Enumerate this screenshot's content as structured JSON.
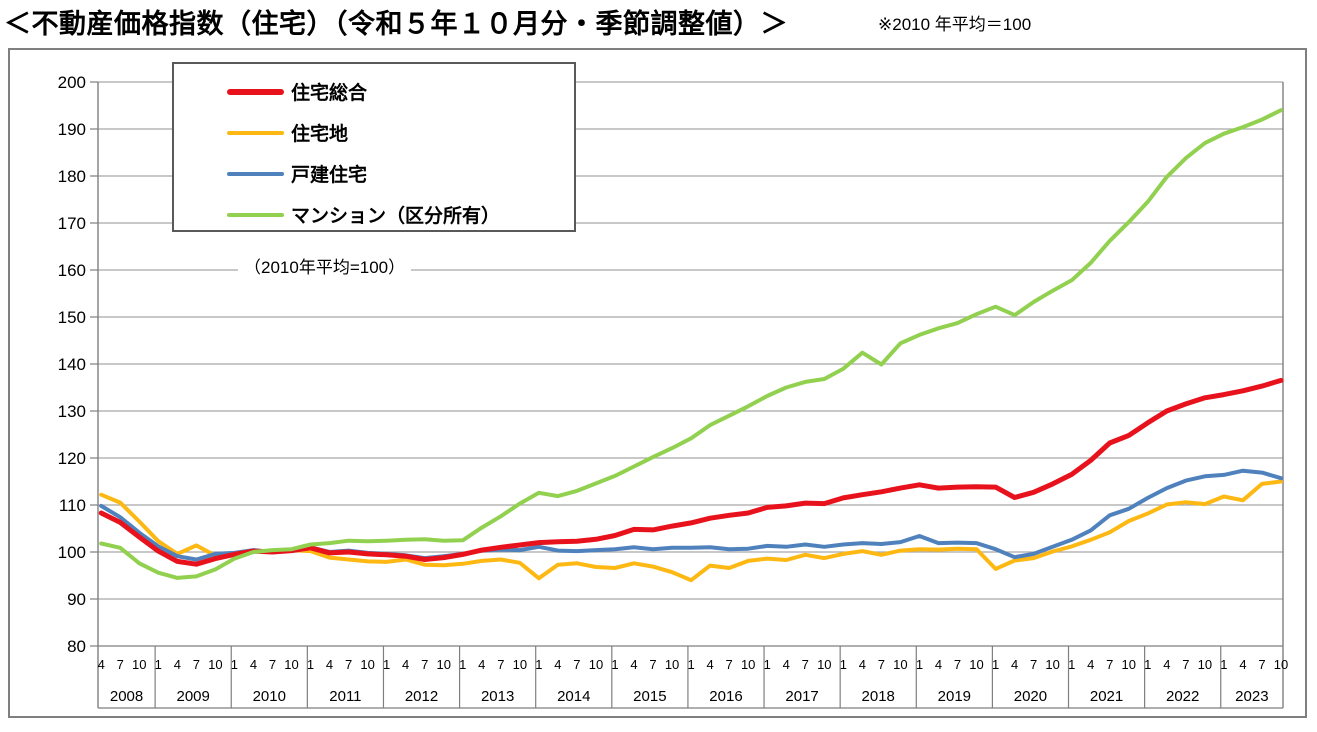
{
  "header": {
    "title": "＜不動産価格指数（住宅）（令和５年１０月分・季節調整値）＞",
    "note": "※2010 年平均＝100"
  },
  "annotation": "（2010年平均=100）",
  "chart_data": {
    "type": "line",
    "title": "＜不動産価格指数（住宅）（令和５年１０月分・季節調整値）＞",
    "subtitle_note": "※2010 年平均＝100",
    "inner_annotation": "（2010年平均=100）",
    "xlabel": "",
    "ylabel": "",
    "ylim": [
      80,
      200
    ],
    "ytick_interval": 10,
    "grid": true,
    "legend_position": "top-left-inside",
    "x_unit": "year/month (quarterly ticks 1,4,7,10; data 2008/4 - 2023/10)",
    "years": [
      "2008",
      "2009",
      "2010",
      "2011",
      "2012",
      "2013",
      "2014",
      "2015",
      "2016",
      "2017",
      "2018",
      "2019",
      "2020",
      "2021",
      "2022",
      "2023"
    ],
    "categories": [
      "2008/4",
      "2008/7",
      "2008/10",
      "2009/1",
      "2009/4",
      "2009/7",
      "2009/10",
      "2010/1",
      "2010/4",
      "2010/7",
      "2010/10",
      "2011/1",
      "2011/4",
      "2011/7",
      "2011/10",
      "2012/1",
      "2012/4",
      "2012/7",
      "2012/10",
      "2013/1",
      "2013/4",
      "2013/7",
      "2013/10",
      "2014/1",
      "2014/4",
      "2014/7",
      "2014/10",
      "2015/1",
      "2015/4",
      "2015/7",
      "2015/10",
      "2016/1",
      "2016/4",
      "2016/7",
      "2016/10",
      "2017/1",
      "2017/4",
      "2017/7",
      "2017/10",
      "2018/1",
      "2018/4",
      "2018/7",
      "2018/10",
      "2019/1",
      "2019/4",
      "2019/7",
      "2019/10",
      "2020/1",
      "2020/4",
      "2020/7",
      "2020/10",
      "2021/1",
      "2021/4",
      "2021/7",
      "2021/10",
      "2022/1",
      "2022/4",
      "2022/7",
      "2022/10",
      "2023/1",
      "2023/4",
      "2023/7",
      "2023/10"
    ],
    "series": [
      {
        "name": "住宅総合",
        "color": "#e8121d",
        "width": 5,
        "values": [
          108.3,
          106.3,
          103.2,
          100.2,
          98.0,
          97.4,
          98.6,
          99.5,
          100.2,
          100.0,
          100.3,
          100.9,
          99.8,
          100.0,
          99.6,
          99.4,
          99.1,
          98.4,
          98.8,
          99.5,
          100.4,
          101.0,
          101.5,
          102.0,
          102.2,
          102.3,
          102.7,
          103.5,
          104.8,
          104.7,
          105.5,
          106.2,
          107.2,
          107.8,
          108.3,
          109.5,
          109.8,
          110.4,
          110.3,
          111.5,
          112.2,
          112.8,
          113.6,
          114.3,
          113.6,
          113.8,
          113.9,
          113.8,
          111.6,
          112.7,
          114.5,
          116.5,
          119.5,
          123.2,
          124.8,
          127.5,
          130.0,
          131.5,
          132.8,
          133.5,
          134.3,
          135.3,
          136.5
        ]
      },
      {
        "name": "住宅地",
        "color": "#fdb813",
        "width": 4,
        "values": [
          112.2,
          110.5,
          106.5,
          102.3,
          99.6,
          101.4,
          99.2,
          99.7,
          100.3,
          100.0,
          100.4,
          100.2,
          98.8,
          98.4,
          98.0,
          97.9,
          98.4,
          97.3,
          97.2,
          97.5,
          98.1,
          98.4,
          97.7,
          94.4,
          97.3,
          97.6,
          96.8,
          96.6,
          97.6,
          96.9,
          95.7,
          94.0,
          97.1,
          96.6,
          98.1,
          98.6,
          98.3,
          99.4,
          98.7,
          99.6,
          100.2,
          99.4,
          100.3,
          100.6,
          100.5,
          100.7,
          100.6,
          96.4,
          98.2,
          98.7,
          100.1,
          101.2,
          102.6,
          104.2,
          106.6,
          108.2,
          110.1,
          110.6,
          110.2,
          111.8,
          111.0,
          114.5,
          115.0
        ]
      },
      {
        "name": "戸建住宅",
        "color": "#4f81bd",
        "width": 4,
        "values": [
          109.8,
          107.4,
          104.1,
          101.2,
          99.1,
          98.4,
          99.6,
          99.8,
          100.4,
          100.0,
          100.5,
          101.0,
          100.0,
          100.3,
          99.8,
          99.6,
          99.3,
          98.7,
          99.1,
          99.6,
          100.3,
          100.5,
          100.4,
          101.1,
          100.3,
          100.2,
          100.4,
          100.6,
          101.0,
          100.6,
          100.9,
          100.9,
          101.0,
          100.6,
          100.7,
          101.3,
          101.1,
          101.6,
          101.1,
          101.6,
          101.9,
          101.7,
          102.1,
          103.4,
          101.9,
          102.0,
          101.9,
          100.6,
          98.9,
          99.6,
          101.1,
          102.6,
          104.6,
          107.8,
          109.2,
          111.5,
          113.6,
          115.2,
          116.1,
          116.4,
          117.3,
          116.9,
          115.7
        ]
      },
      {
        "name": "マンション（区分所有）",
        "color": "#92d050",
        "width": 4,
        "values": [
          101.8,
          100.9,
          97.6,
          95.6,
          94.5,
          94.8,
          96.3,
          98.6,
          100.0,
          100.4,
          100.6,
          101.6,
          101.9,
          102.4,
          102.3,
          102.4,
          102.6,
          102.7,
          102.4,
          102.5,
          105.2,
          107.6,
          110.3,
          112.6,
          111.9,
          113.0,
          114.6,
          116.2,
          118.2,
          120.2,
          122.1,
          124.2,
          127.0,
          129.0,
          131.0,
          133.2,
          135.0,
          136.2,
          136.8,
          139.0,
          142.4,
          139.9,
          144.4,
          146.2,
          147.6,
          148.7,
          150.6,
          152.2,
          150.4,
          153.2,
          155.6,
          157.8,
          161.5,
          166.2,
          170.2,
          174.5,
          179.8,
          183.8,
          187.0,
          189.0,
          190.4,
          192.0,
          194.0
        ]
      }
    ]
  }
}
